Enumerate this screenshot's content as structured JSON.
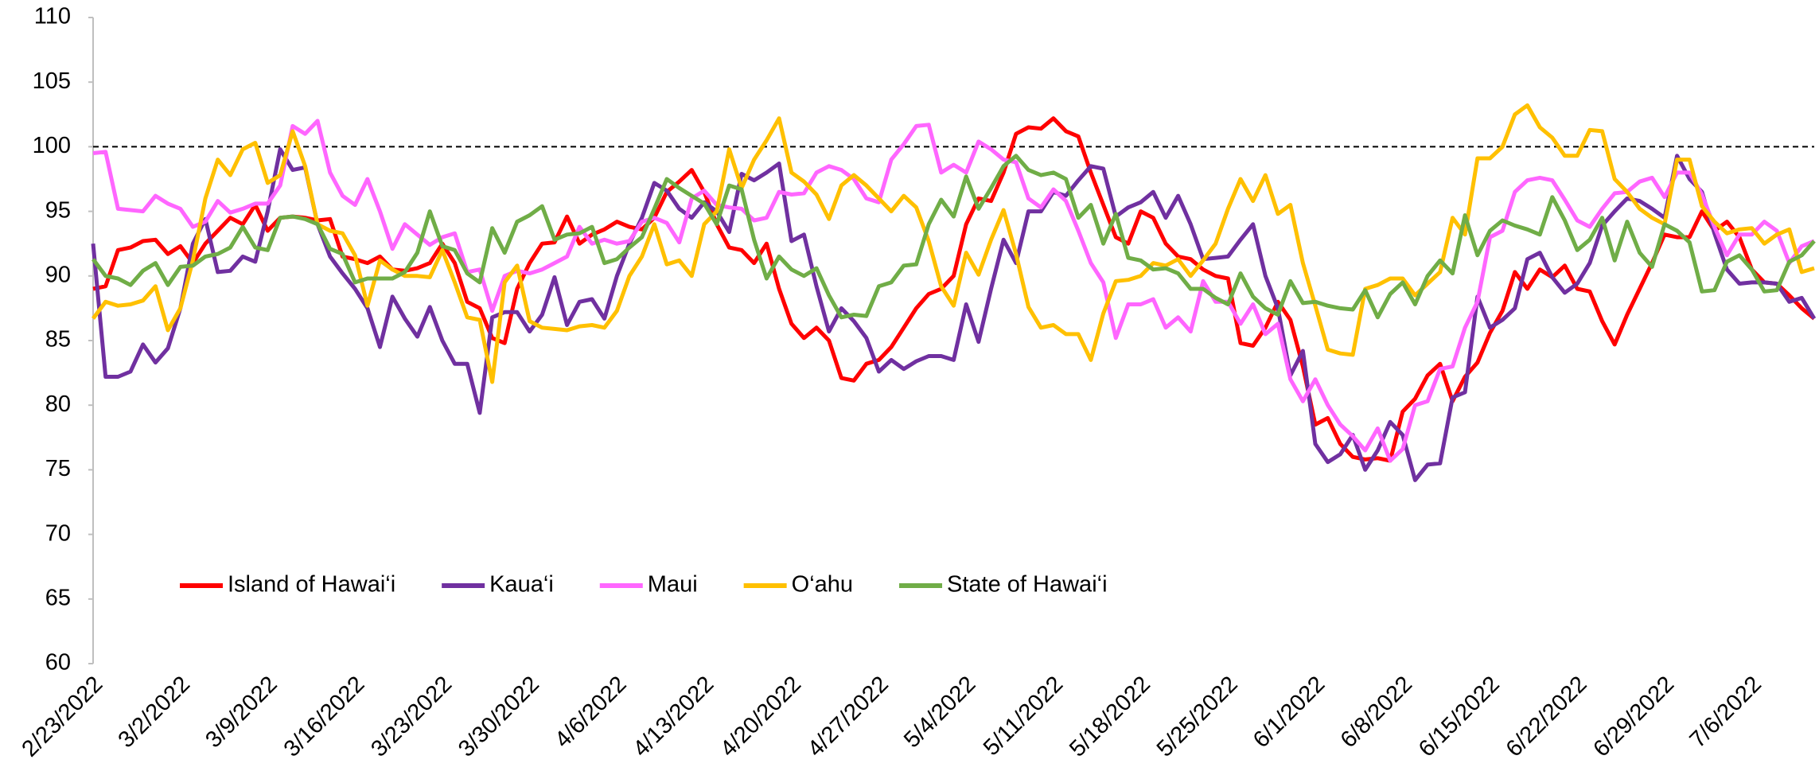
{
  "chart_data": {
    "type": "line",
    "categories": [
      "2/23/2022",
      null,
      null,
      null,
      null,
      null,
      null,
      "3/2/2022",
      null,
      null,
      null,
      null,
      null,
      null,
      "3/9/2022",
      null,
      null,
      null,
      null,
      null,
      null,
      "3/16/2022",
      null,
      null,
      null,
      null,
      null,
      null,
      "3/23/2022",
      null,
      null,
      null,
      null,
      null,
      null,
      "3/30/2022",
      null,
      null,
      null,
      null,
      null,
      null,
      "4/6/2022",
      null,
      null,
      null,
      null,
      null,
      null,
      "4/13/2022",
      null,
      null,
      null,
      null,
      null,
      null,
      "4/20/2022",
      null,
      null,
      null,
      null,
      null,
      null,
      "4/27/2022",
      null,
      null,
      null,
      null,
      null,
      null,
      "5/4/2022",
      null,
      null,
      null,
      null,
      null,
      null,
      "5/11/2022",
      null,
      null,
      null,
      null,
      null,
      null,
      "5/18/2022",
      null,
      null,
      null,
      null,
      null,
      null,
      "5/25/2022",
      null,
      null,
      null,
      null,
      null,
      null,
      "6/1/2022",
      null,
      null,
      null,
      null,
      null,
      null,
      "6/8/2022",
      null,
      null,
      null,
      null,
      null,
      null,
      "6/15/2022",
      null,
      null,
      null,
      null,
      null,
      null,
      "6/22/2022",
      null,
      null,
      null,
      null,
      null,
      null,
      "6/29/2022",
      null,
      null,
      null,
      null,
      null,
      null,
      "7/6/2022",
      null,
      null,
      null,
      null,
      null
    ],
    "series": [
      {
        "name": "Island of Hawai‘i",
        "color": "#ff0000",
        "values": [
          89,
          89.2,
          92,
          92.2,
          92.7,
          92.8,
          91.7,
          92.3,
          91,
          92.5,
          93.5,
          94.5,
          94,
          95.5,
          93.5,
          94.5,
          94.6,
          94.5,
          94.3,
          94.4,
          91.5,
          91.3,
          91,
          91.5,
          90.5,
          90.4,
          90.6,
          91,
          92.5,
          91,
          88,
          87.5,
          85.2,
          84.8,
          89,
          91,
          92.5,
          92.6,
          94.6,
          92.5,
          93.2,
          93.6,
          94.2,
          93.8,
          93.6,
          94.5,
          96.5,
          97.3,
          98.2,
          96.5,
          94,
          92.2,
          92,
          91,
          92.5,
          89,
          86.3,
          85.2,
          86,
          85,
          82.1,
          81.9,
          83.2,
          83.5,
          84.5,
          86,
          87.5,
          88.6,
          89,
          90,
          94,
          96,
          95.8,
          98,
          101,
          101.5,
          101.4,
          102.2,
          101.2,
          100.8,
          98,
          95.5,
          93,
          92.5,
          95,
          94.5,
          92.5,
          91.5,
          91.3,
          90.5,
          90,
          89.8,
          84.8,
          84.6,
          86,
          88,
          86.6,
          83,
          78.5,
          79,
          77,
          76,
          75.8,
          75.9,
          75.7,
          79.5,
          80.5,
          82.3,
          83.2,
          80.3,
          82.2,
          83.3,
          85.6,
          87.3,
          90.3,
          89,
          90.5,
          89.9,
          90.8,
          89,
          88.8,
          86.5,
          84.7,
          87,
          89,
          91,
          93.2,
          93,
          93,
          95,
          93.5,
          94.2,
          93,
          90.5,
          89.5,
          89.4,
          88.5,
          87.5,
          86.7
        ]
      },
      {
        "name": "Kaua‘i",
        "color": "#7030a0",
        "values": [
          92.5,
          82.2,
          82.2,
          82.6,
          84.7,
          83.3,
          84.4,
          87.5,
          92.5,
          94.4,
          90.3,
          90.4,
          91.5,
          91.1,
          95,
          99.8,
          98.2,
          98.4,
          94,
          91.5,
          90.2,
          89,
          87.5,
          84.5,
          88.4,
          86.7,
          85.3,
          87.6,
          85,
          83.2,
          83.2,
          79.4,
          86.8,
          87.2,
          87.2,
          85.7,
          87,
          89.9,
          86.2,
          88,
          88.2,
          86.7,
          90,
          92.5,
          94.5,
          97.2,
          96.6,
          95.2,
          94.5,
          95.7,
          95,
          93.4,
          97.9,
          97.4,
          98,
          98.7,
          92.7,
          93.2,
          89.2,
          85.7,
          87.5,
          86.5,
          85.2,
          82.6,
          83.5,
          82.8,
          83.4,
          83.8,
          83.8,
          83.5,
          87.8,
          84.9,
          89,
          92.8,
          91,
          95,
          95,
          96.5,
          96.2,
          97.4,
          98.5,
          98.3,
          94.6,
          95.3,
          95.7,
          96.5,
          94.5,
          96.2,
          94,
          91.3,
          91.4,
          91.5,
          92.8,
          94,
          90,
          87.5,
          82.3,
          84.2,
          77,
          75.6,
          76.2,
          77.7,
          75,
          76.5,
          78.7,
          77.7,
          74.2,
          75.4,
          75.5,
          80.6,
          81,
          88.4,
          86,
          86.6,
          87.5,
          91.3,
          91.8,
          89.9,
          88.7,
          89.4,
          91,
          93.9,
          95,
          96,
          95.8,
          95.2,
          94.5,
          99.3,
          97.5,
          96.5,
          93.3,
          90.5,
          89.4,
          89.5,
          89.5,
          89.4,
          88,
          88.3,
          86.7
        ]
      },
      {
        "name": "Maui",
        "color": "#ff66ff",
        "values": [
          99.5,
          99.6,
          95.2,
          95.1,
          95,
          96.2,
          95.6,
          95.2,
          93.8,
          94.2,
          95.8,
          94.9,
          95.2,
          95.6,
          95.6,
          97,
          101.6,
          101,
          102,
          98,
          96.2,
          95.5,
          97.5,
          95,
          92.1,
          94,
          93.2,
          92.4,
          93,
          93.3,
          90.3,
          90.5,
          87.3,
          90,
          90.4,
          90.2,
          90.5,
          91,
          91.5,
          93.8,
          92.5,
          92.8,
          92.5,
          92.7,
          94.2,
          94.5,
          94.1,
          92.6,
          96,
          96.6,
          95.5,
          95.3,
          95.2,
          94.3,
          94.5,
          96.5,
          96.3,
          96.4,
          98,
          98.5,
          98.2,
          97.5,
          96,
          95.7,
          99,
          100.2,
          101.6,
          101.7,
          98,
          98.6,
          98,
          100.4,
          99.8,
          99,
          98.8,
          96,
          95.3,
          96.7,
          95.8,
          93.5,
          91,
          89.5,
          85.2,
          87.8,
          87.8,
          88.2,
          86,
          86.8,
          85.7,
          89.6,
          88,
          88,
          86.3,
          87.8,
          85.5,
          86.3,
          82,
          80.3,
          82,
          80,
          78.5,
          77.6,
          76.5,
          78.2,
          75.7,
          76.6,
          80,
          80.3,
          82.8,
          83,
          86,
          88,
          93,
          93.5,
          96.5,
          97.4,
          97.6,
          97.4,
          95.9,
          94.3,
          93.8,
          95.2,
          96.4,
          96.5,
          97.3,
          97.6,
          96.1,
          98,
          98,
          96.3,
          93.8,
          91.6,
          93.2,
          93.2,
          94.2,
          93.5,
          91,
          92.3,
          92.7
        ]
      },
      {
        "name": "O‘ahu",
        "color": "#ffc000",
        "values": [
          86.7,
          88,
          87.7,
          87.8,
          88.1,
          89.2,
          85.8,
          87.5,
          91.2,
          96,
          99,
          97.8,
          99.8,
          100.3,
          97.2,
          97.8,
          101.2,
          98.5,
          94,
          93.5,
          93.3,
          91.6,
          87.7,
          91.2,
          90.5,
          90,
          90,
          89.9,
          92,
          89.5,
          86.8,
          86.6,
          81.8,
          89.5,
          90.8,
          86.5,
          86,
          85.9,
          85.8,
          86.1,
          86.2,
          86,
          87.3,
          90,
          91.5,
          94,
          90.9,
          91.2,
          90,
          94,
          95,
          99.8,
          96.8,
          99,
          100.5,
          102.2,
          98,
          97.3,
          96.3,
          94.4,
          97,
          97.8,
          97,
          96,
          95,
          96.2,
          95.3,
          92.7,
          89.2,
          87.7,
          91.8,
          90.1,
          92.8,
          95.1,
          91.7,
          87.6,
          86,
          86.2,
          85.5,
          85.5,
          83.5,
          87.1,
          89.6,
          89.7,
          90,
          91,
          90.8,
          91.3,
          90,
          91.2,
          92.5,
          95.2,
          97.5,
          95.8,
          97.8,
          94.8,
          95.5,
          91,
          87.7,
          84.3,
          84,
          83.9,
          89,
          89.3,
          89.8,
          89.8,
          88.5,
          89.4,
          90.3,
          94.5,
          93.2,
          99.1,
          99.1,
          100,
          102.5,
          103.2,
          101.5,
          100.7,
          99.3,
          99.3,
          101.3,
          101.2,
          97.5,
          96.5,
          95.2,
          94.5,
          94,
          99,
          99,
          95.4,
          94.2,
          93.3,
          93.6,
          93.7,
          92.5,
          93.2,
          93.6,
          90.3,
          90.6
        ]
      },
      {
        "name": "State of Hawai‘i",
        "color": "#70ad47",
        "values": [
          91.3,
          90,
          89.8,
          89.3,
          90.4,
          91,
          89.3,
          90.7,
          90.8,
          91.5,
          91.7,
          92.2,
          93.8,
          92.2,
          92,
          94.5,
          94.6,
          94.4,
          94,
          92.1,
          91.7,
          89.5,
          89.8,
          89.8,
          89.8,
          90.3,
          91.8,
          95,
          92.3,
          92,
          90.2,
          89.5,
          93.7,
          91.8,
          94.2,
          94.7,
          95.4,
          92.8,
          93.2,
          93.3,
          93.8,
          91,
          91.3,
          92.2,
          93,
          95.2,
          97.5,
          96.8,
          96.2,
          95.6,
          94,
          97,
          96.7,
          92.8,
          89.8,
          91.5,
          90.5,
          90,
          90.6,
          88.5,
          86.8,
          87,
          86.9,
          89.2,
          89.5,
          90.8,
          90.9,
          94,
          95.9,
          94.6,
          97.7,
          95.2,
          96.8,
          98.5,
          99.3,
          98.2,
          97.8,
          98,
          97.5,
          94.5,
          95.5,
          92.5,
          94.8,
          91.4,
          91.2,
          90.5,
          90.6,
          90.2,
          89,
          89,
          88.3,
          87.8,
          90.2,
          88.4,
          87.5,
          87,
          89.6,
          87.9,
          88,
          87.7,
          87.5,
          87.4,
          88.9,
          86.8,
          88.6,
          89.5,
          87.8,
          90,
          91.2,
          90.2,
          94.7,
          91.6,
          93.5,
          94.3,
          93.9,
          93.6,
          93.2,
          96.1,
          94.3,
          92,
          92.8,
          94.5,
          91.2,
          94.2,
          91.8,
          90.7,
          94,
          93.5,
          92.6,
          88.8,
          88.9,
          91.1,
          91.6,
          90.5,
          88.8,
          88.9,
          91.1,
          91.6,
          92.7
        ]
      }
    ],
    "ylim": [
      60,
      110
    ],
    "yticks": [
      60,
      65,
      70,
      75,
      80,
      85,
      90,
      95,
      100,
      105,
      110
    ],
    "reference_line": 100,
    "legend": "lower left",
    "grid": false
  }
}
